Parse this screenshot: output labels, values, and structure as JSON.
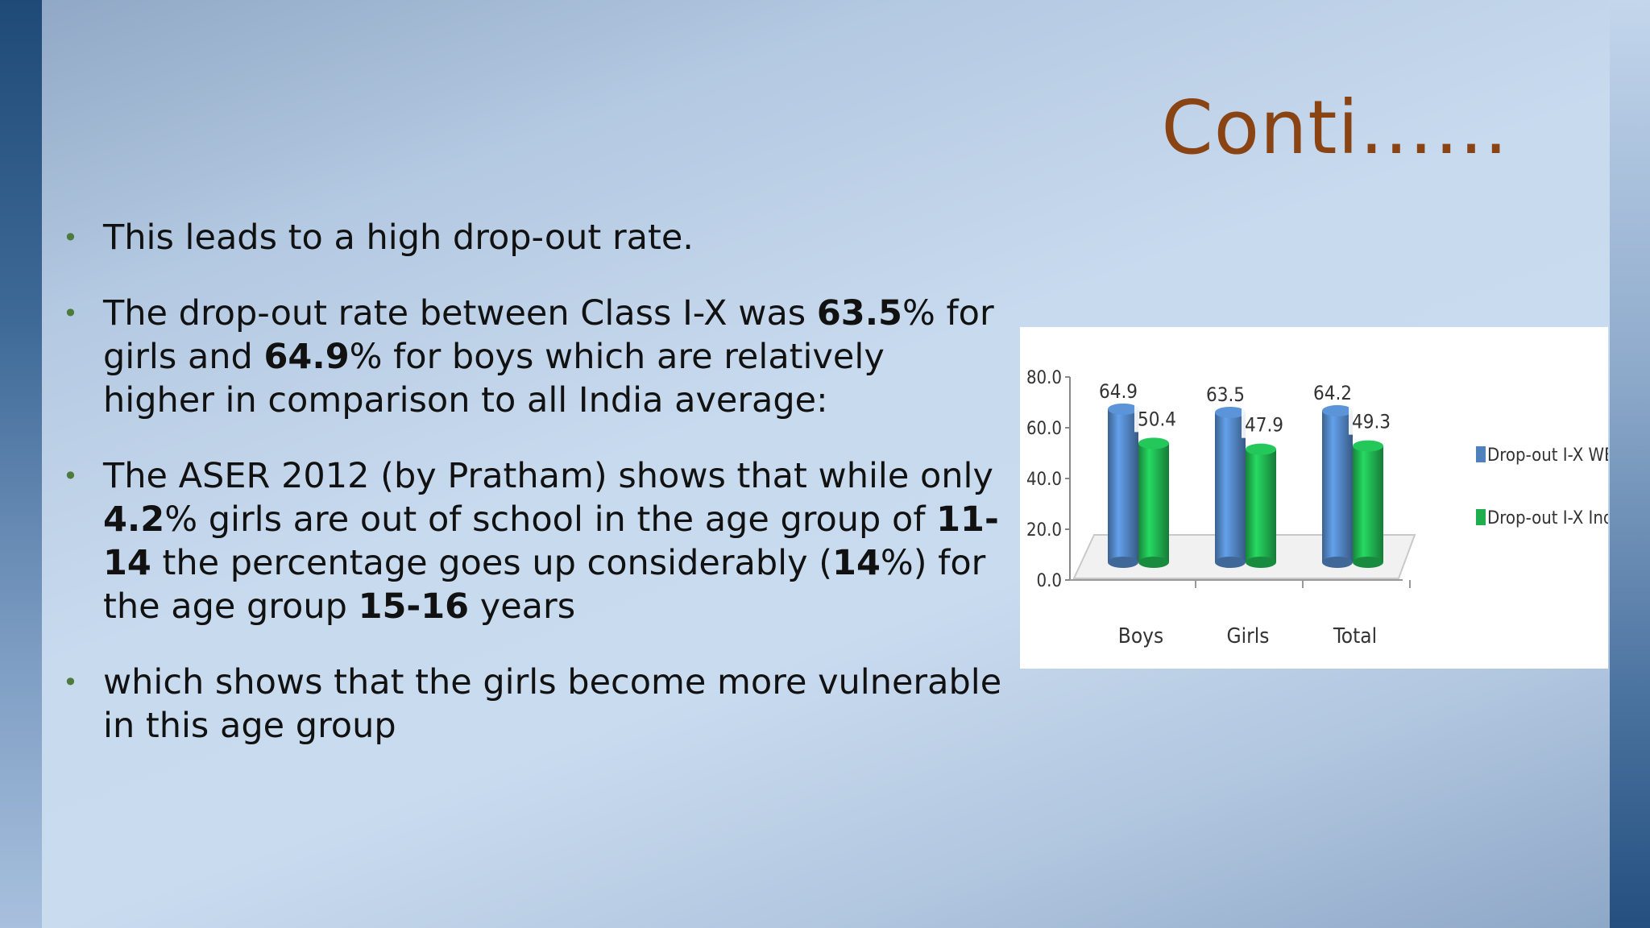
{
  "slide": {
    "title": "Conti……",
    "bullets": [
      {
        "parts": [
          {
            "t": "This leads to a high drop-out rate.",
            "b": false
          }
        ]
      },
      {
        "parts": [
          {
            "t": "The drop-out rate between Class I-X was ",
            "b": false
          },
          {
            "t": "63.5",
            "b": true
          },
          {
            "t": "% for girls and ",
            "b": false
          },
          {
            "t": "64.9",
            "b": true
          },
          {
            "t": "% for boys which are relatively higher in comparison to all India average:",
            "b": false
          }
        ]
      },
      {
        "parts": [
          {
            "t": "The ASER 2012 (by Pratham) shows that while only ",
            "b": false
          },
          {
            "t": "4.2",
            "b": true
          },
          {
            "t": "% girls are out of school in the age group of ",
            "b": false
          },
          {
            "t": "11-14",
            "b": true
          },
          {
            "t": " the percentage goes up considerably (",
            "b": false
          },
          {
            "t": "14",
            "b": true
          },
          {
            "t": "%) for the age group ",
            "b": false
          },
          {
            "t": "15-16",
            "b": true
          },
          {
            "t": " years",
            "b": false
          }
        ]
      },
      {
        "parts": [
          {
            "t": "which shows that the girls become more vulnerable in this age group",
            "b": false
          }
        ]
      }
    ],
    "bullet_glyph": "•"
  },
  "chart_data": {
    "type": "bar",
    "categories": [
      "Boys",
      "Girls",
      "Total"
    ],
    "series": [
      {
        "name": "Drop-out I-X WB",
        "values": [
          64.9,
          63.5,
          64.2
        ],
        "color": "#4f81bd"
      },
      {
        "name": "Drop-out I-X India",
        "values": [
          50.4,
          47.9,
          49.3
        ],
        "color": "#1fae4e"
      }
    ],
    "value_labels": [
      [
        "64.9",
        "63.5",
        "64.2"
      ],
      [
        "50.4",
        "47.9",
        "49.3"
      ]
    ],
    "ylim": [
      0,
      80
    ],
    "yticks": [
      "0.0",
      "20.0",
      "40.0",
      "60.0",
      "80.0"
    ],
    "legend": "right",
    "style": "3d-cylinder"
  }
}
